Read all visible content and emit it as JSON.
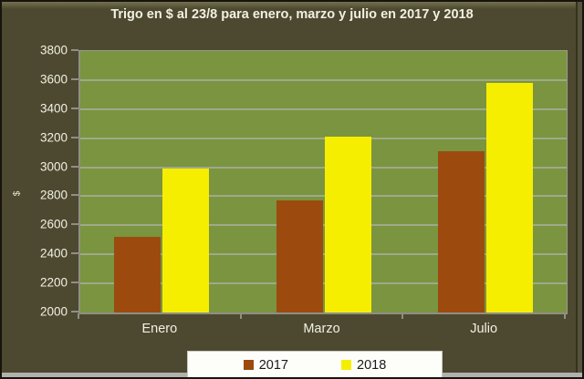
{
  "chart_data": {
    "type": "bar",
    "title": "Trigo en $ al 23/8 para enero, marzo y julio en 2017 y 2018",
    "categories": [
      "Enero",
      "Marzo",
      "Julio"
    ],
    "series": [
      {
        "name": "2017",
        "color": "#9C4A0E",
        "values": [
          2520,
          2770,
          3110
        ]
      },
      {
        "name": "2018",
        "color": "#F6EE00",
        "values": [
          2990,
          3210,
          3580
        ]
      }
    ],
    "xlabel": "",
    "ylabel": "$",
    "ylim": [
      2000,
      3800
    ],
    "ytick_step": 200,
    "grid": true,
    "legend_position": "bottom"
  },
  "colors": {
    "window_background": "#4D4930",
    "plot_background": "#7A9440",
    "gridline": "#A0A98A",
    "axis_line": "#8F8F83",
    "axis_text": "#F1F0E2",
    "legend_background": "#FDFDFA",
    "legend_text": "#1A1A1A",
    "series_2017": "#9C4A0E",
    "series_2018": "#F6EE00",
    "bottom_strip": "#B1B1AE"
  }
}
